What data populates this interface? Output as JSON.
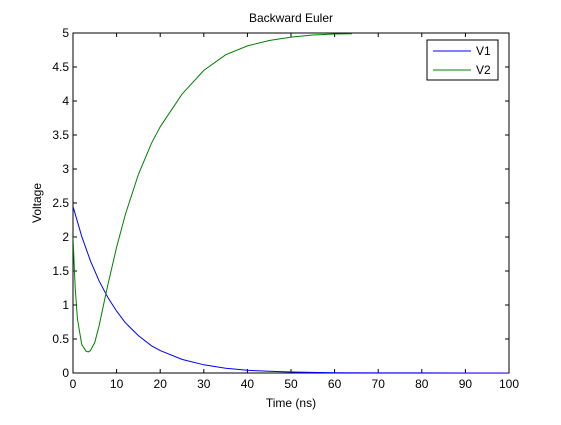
{
  "chart_data": {
    "type": "line",
    "title": "Backward Euler",
    "xlabel": "Time (ns)",
    "ylabel": "Voltage",
    "xlim": [
      0,
      100
    ],
    "ylim": [
      0,
      5
    ],
    "xticks": [
      0,
      10,
      20,
      30,
      40,
      50,
      60,
      70,
      80,
      90,
      100
    ],
    "yticks": [
      0,
      0.5,
      1,
      1.5,
      2,
      2.5,
      3,
      3.5,
      4,
      4.5,
      5
    ],
    "xtick_labels": [
      "0",
      "10",
      "20",
      "30",
      "40",
      "50",
      "60",
      "70",
      "80",
      "90",
      "100"
    ],
    "ytick_labels": [
      "0",
      "0.5",
      "1",
      "1.5",
      "2",
      "2.5",
      "3",
      "3.5",
      "4",
      "4.5",
      "5"
    ],
    "grid": false,
    "legend_position": "top-right",
    "series": [
      {
        "name": "V1",
        "color": "#0000ff",
        "x": [
          0,
          2,
          4,
          6,
          8,
          10,
          12,
          15,
          18,
          20,
          25,
          30,
          35,
          40,
          45,
          50,
          60,
          70,
          80,
          90,
          100
        ],
        "y": [
          2.45,
          2.01,
          1.65,
          1.35,
          1.11,
          0.91,
          0.74,
          0.55,
          0.4,
          0.33,
          0.2,
          0.12,
          0.07,
          0.04,
          0.025,
          0.015,
          0.005,
          0.002,
          0.001,
          0.0,
          0.0
        ]
      },
      {
        "name": "V2",
        "color": "#008000",
        "x": [
          0,
          0.5,
          1,
          2,
          3,
          3.5,
          4,
          5,
          6,
          7,
          8,
          10,
          12,
          15,
          18,
          20,
          25,
          30,
          35,
          40,
          45,
          50,
          55,
          60,
          64
        ],
        "y": [
          2.0,
          1.25,
          0.8,
          0.42,
          0.32,
          0.31,
          0.33,
          0.45,
          0.7,
          1.0,
          1.3,
          1.85,
          2.33,
          2.92,
          3.38,
          3.62,
          4.1,
          4.45,
          4.68,
          4.81,
          4.89,
          4.94,
          4.97,
          4.985,
          4.99
        ]
      }
    ]
  }
}
